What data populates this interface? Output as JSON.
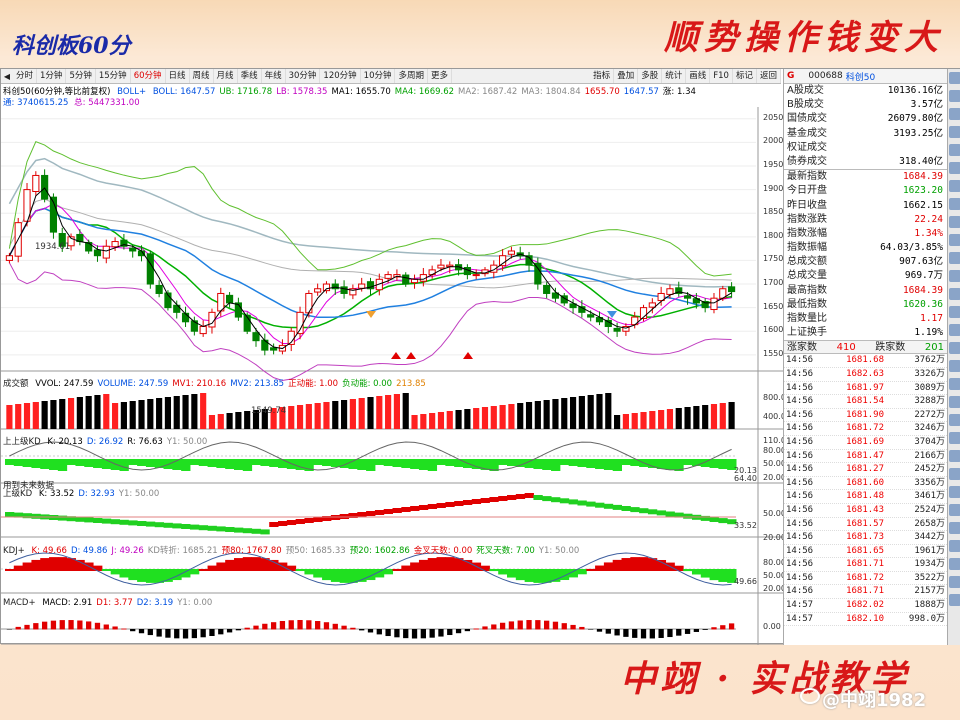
{
  "banner": {
    "left_title": "科创板60分",
    "right_title": "顺势操作钱变大"
  },
  "footer": {
    "title": "中翊 · 实战教学",
    "watermark": "@中翊1982"
  },
  "toolbar": {
    "periods": [
      "分时",
      "1分钟",
      "5分钟",
      "15分钟",
      "60分钟",
      "日线",
      "周线",
      "月线",
      "季线",
      "年线",
      "30分钟",
      "120分钟",
      "10分钟",
      "多周期",
      "更多"
    ],
    "active_period": "60分钟",
    "tools": [
      "指标",
      "叠加",
      "多股",
      "统计",
      "画线",
      "F10",
      "标记",
      "返回"
    ]
  },
  "info_line1": {
    "prefix": "科创50(60分钟,等比前复权)",
    "boll_name": "BOLL+",
    "items": [
      {
        "text": "BOLL: 1647.57",
        "color": "#0050e0"
      },
      {
        "text": "UB: 1716.78",
        "color": "#00a000"
      },
      {
        "text": "LB: 1578.35",
        "color": "#c000c0"
      },
      {
        "text": "MA1: 1655.70",
        "color": "#000000"
      },
      {
        "text": "MA4: 1669.62",
        "color": "#00a000"
      },
      {
        "text": "MA2: 1687.42",
        "color": "#888888"
      },
      {
        "text": "MA3: 1804.84",
        "color": "#888888"
      },
      {
        "text": "1655.70",
        "color": "#e00000"
      },
      {
        "text": "1647.57",
        "color": "#0050e0"
      },
      {
        "text": "涨: 1.34",
        "color": "#000000"
      }
    ]
  },
  "info_line2": {
    "tong": "通: 3740615.25",
    "zong": "总: 5447331.00"
  },
  "price_axis": [
    "2050",
    "2000",
    "1950",
    "1900",
    "1850",
    "1800",
    "1750",
    "1700",
    "1650",
    "1600",
    "1550"
  ],
  "price_annotations": {
    "high": "1934.61",
    "low": "1549.74"
  },
  "vol_pane": {
    "label": "成交额",
    "items": [
      {
        "text": "VVOL: 247.59",
        "color": "#000000"
      },
      {
        "text": "VOLUME: 247.59",
        "color": "#0050e0"
      },
      {
        "text": "MV1: 210.16",
        "color": "#e00000"
      },
      {
        "text": "MV2: 213.85",
        "color": "#0050e0"
      },
      {
        "text": "正动能: 1.00",
        "color": "#e00000"
      },
      {
        "text": "负动能: 0.00",
        "color": "#00a000"
      },
      {
        "text": "213.85",
        "color": "#e08000"
      }
    ],
    "axis": [
      "800.0",
      "400.0"
    ]
  },
  "kd1_pane": {
    "label": "上上级KD",
    "items": [
      {
        "text": "K: 20.13",
        "color": "#000000"
      },
      {
        "text": "D: 26.92",
        "color": "#0050e0"
      },
      {
        "text": "R: 76.63",
        "color": "#000000"
      },
      {
        "text": "Y1: 50.00",
        "color": "#888888"
      }
    ],
    "axis": [
      "110.00",
      "80.00",
      "50.00",
      "20.00"
    ],
    "values": [
      "20.13",
      "64.40"
    ],
    "note": "用到未来数据"
  },
  "kd2_pane": {
    "label": "上级KD",
    "items": [
      {
        "text": "K: 33.52",
        "color": "#000000"
      },
      {
        "text": "D: 32.93",
        "color": "#0050e0"
      },
      {
        "text": "Y1: 50.00",
        "color": "#888888"
      }
    ],
    "axis": [
      "50.00",
      "20.00"
    ],
    "value": "33.52"
  },
  "kdj_pane": {
    "label": "KDJ+",
    "items": [
      {
        "text": "K: 49.66",
        "color": "#e00000"
      },
      {
        "text": "D: 49.86",
        "color": "#0050e0"
      },
      {
        "text": "J: 49.26",
        "color": "#c000c0"
      },
      {
        "text": "KD转折: 1685.21",
        "color": "#888888"
      },
      {
        "text": "预80: 1767.80",
        "color": "#e00000"
      },
      {
        "text": "预50: 1685.33",
        "color": "#888888"
      },
      {
        "text": "预20: 1602.86",
        "color": "#00a000"
      },
      {
        "text": "金叉天数: 0.00",
        "color": "#e00000"
      },
      {
        "text": "死叉天数: 7.00",
        "color": "#00a000"
      },
      {
        "text": "Y1: 50.00",
        "color": "#888888"
      }
    ],
    "axis": [
      "80.00",
      "50.00",
      "20.00"
    ],
    "value": "49.66"
  },
  "macd_pane": {
    "label": "MACD+",
    "items": [
      {
        "text": "MACD: 2.91",
        "color": "#000000"
      },
      {
        "text": "D1: 3.77",
        "color": "#e00000"
      },
      {
        "text": "D2: 3.19",
        "color": "#0050e0"
      },
      {
        "text": "Y1: 0.00",
        "color": "#888888"
      }
    ],
    "axis": [
      "0.00"
    ]
  },
  "quote": {
    "code": "000688",
    "name": "科创50",
    "g": "G",
    "rows1": [
      {
        "k": "A股成交",
        "v": "10136.16亿",
        "c": "#000000"
      },
      {
        "k": "B股成交",
        "v": "3.57亿",
        "c": "#000000"
      },
      {
        "k": "国债成交",
        "v": "26079.80亿",
        "c": "#000000"
      },
      {
        "k": "基金成交",
        "v": "3193.25亿",
        "c": "#000000"
      },
      {
        "k": "权证成交",
        "v": "",
        "c": "#000000"
      },
      {
        "k": "债券成交",
        "v": "318.40亿",
        "c": "#000000"
      }
    ],
    "rows2": [
      {
        "k": "最新指数",
        "v": "1684.39",
        "c": "#e00000"
      },
      {
        "k": "今日开盘",
        "v": "1623.20",
        "c": "#00a000"
      },
      {
        "k": "昨日收盘",
        "v": "1662.15",
        "c": "#000000"
      },
      {
        "k": "指数涨跌",
        "v": "22.24",
        "c": "#e00000"
      },
      {
        "k": "指数涨幅",
        "v": "1.34%",
        "c": "#e00000"
      },
      {
        "k": "指数振幅",
        "v": "64.03/3.85%",
        "c": "#000000"
      },
      {
        "k": "总成交额",
        "v": "907.63亿",
        "c": "#000000"
      },
      {
        "k": "总成交量",
        "v": "969.7万",
        "c": "#000000"
      },
      {
        "k": "最高指数",
        "v": "1684.39",
        "c": "#e00000"
      },
      {
        "k": "最低指数",
        "v": "1620.36",
        "c": "#00a000"
      },
      {
        "k": "指数量比",
        "v": "1.17",
        "c": "#e00000"
      },
      {
        "k": "上证换手",
        "v": "1.19%",
        "c": "#000000"
      }
    ],
    "up_label": "涨家数",
    "up_count": "410",
    "down_label": "跌家数",
    "down_count": "201"
  },
  "ticks": [
    {
      "t": "14:56",
      "p": "1681.68",
      "v": "3762万"
    },
    {
      "t": "14:56",
      "p": "1682.63",
      "v": "3326万"
    },
    {
      "t": "14:56",
      "p": "1681.97",
      "v": "3089万"
    },
    {
      "t": "14:56",
      "p": "1681.54",
      "v": "3288万"
    },
    {
      "t": "14:56",
      "p": "1681.90",
      "v": "2272万"
    },
    {
      "t": "14:56",
      "p": "1681.72",
      "v": "3246万"
    },
    {
      "t": "14:56",
      "p": "1681.69",
      "v": "3704万"
    },
    {
      "t": "14:56",
      "p": "1681.47",
      "v": "2166万"
    },
    {
      "t": "14:56",
      "p": "1681.27",
      "v": "2452万"
    },
    {
      "t": "14:56",
      "p": "1681.60",
      "v": "3356万"
    },
    {
      "t": "14:56",
      "p": "1681.48",
      "v": "3461万"
    },
    {
      "t": "14:56",
      "p": "1681.43",
      "v": "2524万"
    },
    {
      "t": "14:56",
      "p": "1681.57",
      "v": "2658万"
    },
    {
      "t": "14:56",
      "p": "1681.73",
      "v": "3442万"
    },
    {
      "t": "14:56",
      "p": "1681.65",
      "v": "1961万"
    },
    {
      "t": "14:56",
      "p": "1681.71",
      "v": "1934万"
    },
    {
      "t": "14:56",
      "p": "1681.72",
      "v": "3522万"
    },
    {
      "t": "14:56",
      "p": "1681.71",
      "v": "2157万"
    },
    {
      "t": "14:57",
      "p": "1682.02",
      "v": "1888万"
    },
    {
      "t": "14:57",
      "p": "1682.10",
      "v": "998.0万"
    }
  ],
  "chart_data": {
    "type": "candlestick",
    "title": "科创50(60分钟,等比前复权)",
    "ylim": [
      1520,
      2075
    ],
    "closes": [
      1760,
      1830,
      1900,
      1930,
      1880,
      1810,
      1780,
      1800,
      1790,
      1770,
      1760,
      1780,
      1790,
      1780,
      1770,
      1760,
      1700,
      1680,
      1650,
      1640,
      1620,
      1600,
      1610,
      1640,
      1680,
      1660,
      1630,
      1600,
      1580,
      1560,
      1560,
      1570,
      1600,
      1640,
      1680,
      1690,
      1700,
      1690,
      1680,
      1690,
      1700,
      1690,
      1710,
      1720,
      1720,
      1700,
      1710,
      1720,
      1730,
      1740,
      1740,
      1730,
      1720,
      1720,
      1730,
      1740,
      1760,
      1770,
      1760,
      1740,
      1700,
      1680,
      1670,
      1660,
      1650,
      1640,
      1630,
      1620,
      1610,
      1600,
      1610,
      1630,
      1650,
      1660,
      1680,
      1690,
      1680,
      1670,
      1660,
      1650,
      1670,
      1690,
      1684
    ]
  }
}
